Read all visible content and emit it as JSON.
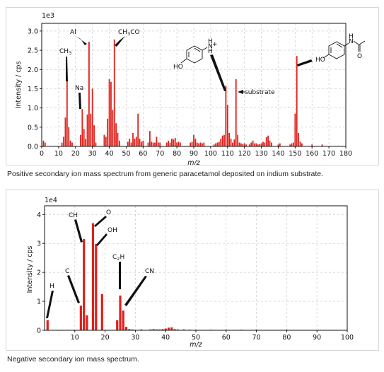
{
  "captions": {
    "positive": "Positive secondary ion mass spectrum from generic paracetamol deposited on indium substrate.",
    "negative": "Negative secondary ion mass spectrum."
  },
  "chart_data": [
    {
      "type": "bar",
      "title": "",
      "xlabel": "m/z",
      "ylabel": "Intensity / cps",
      "y_multiplier": "1e3",
      "xlim": [
        0,
        180
      ],
      "ylim": [
        0,
        3.2
      ],
      "x_ticks": [
        0,
        10,
        20,
        30,
        40,
        50,
        60,
        70,
        80,
        90,
        100,
        110,
        120,
        130,
        140,
        150,
        160,
        170,
        180
      ],
      "y_ticks": [
        "0.0",
        "0.5",
        "1.0",
        "1.5",
        "2.0",
        "2.5",
        "3.0"
      ],
      "grid": true,
      "color": "#e0201b",
      "x": [
        1,
        2,
        12,
        13,
        14,
        15,
        16,
        17,
        18,
        23,
        24,
        25,
        26,
        27,
        28,
        29,
        30,
        31,
        32,
        37,
        38,
        39,
        40,
        41,
        42,
        43,
        44,
        45,
        46,
        51,
        52,
        53,
        54,
        55,
        56,
        57,
        58,
        59,
        60,
        63,
        64,
        65,
        66,
        67,
        68,
        69,
        70,
        74,
        75,
        76,
        77,
        78,
        79,
        80,
        81,
        82,
        88,
        89,
        90,
        91,
        92,
        93,
        94,
        95,
        96,
        102,
        103,
        104,
        105,
        106,
        107,
        108,
        109,
        110,
        111,
        112,
        113,
        114,
        115,
        116,
        117,
        118,
        119,
        120,
        121,
        123,
        124,
        125,
        126,
        127,
        128,
        129,
        130,
        131,
        132,
        133,
        134,
        135,
        136,
        140,
        141,
        147,
        148,
        149,
        150,
        151,
        152,
        153,
        154,
        160,
        166
      ],
      "values": [
        0.15,
        0.1,
        0.1,
        0.25,
        0.75,
        1.74,
        0.5,
        0.15,
        0.1,
        0.3,
        0.97,
        0.45,
        0.2,
        0.83,
        2.72,
        0.85,
        1.5,
        0.55,
        0.1,
        0.3,
        0.25,
        0.72,
        1.75,
        1.68,
        0.95,
        2.78,
        0.6,
        0.35,
        0.15,
        0.12,
        0.2,
        0.1,
        0.35,
        0.2,
        0.25,
        0.85,
        0.2,
        0.12,
        0.15,
        0.1,
        0.4,
        0.12,
        0.1,
        0.1,
        0.25,
        0.1,
        0.1,
        0.1,
        0.15,
        0.1,
        0.2,
        0.18,
        0.22,
        0.1,
        0.12,
        0.1,
        0.1,
        0.12,
        0.3,
        0.2,
        0.1,
        0.08,
        0.1,
        0.08,
        0.1,
        0.05,
        0.08,
        0.1,
        0.12,
        0.2,
        0.28,
        0.3,
        1.58,
        1.08,
        0.35,
        0.2,
        0.1,
        0.18,
        1.75,
        0.3,
        0.1,
        0.08,
        0.06,
        0.08,
        0.05,
        0.05,
        0.1,
        0.15,
        0.08,
        0.08,
        0.05,
        0.06,
        0.08,
        0.12,
        0.1,
        0.24,
        0.28,
        0.15,
        0.1,
        0.05,
        0.08,
        0.05,
        0.08,
        0.1,
        0.85,
        2.35,
        0.35,
        0.12,
        0.08,
        0.05,
        0.05
      ],
      "annotations": [
        {
          "text": "Al",
          "x": 27
        },
        {
          "text": "CH3CO",
          "x": 43
        },
        {
          "text": "CH3",
          "x": 15
        },
        {
          "text": "Na",
          "x": 23
        },
        {
          "text": "substrate",
          "x": 115
        },
        {
          "text": "paracetamol ion",
          "x": 109
        },
        {
          "text": "paracetamol molecule",
          "x": 151
        }
      ]
    },
    {
      "type": "bar",
      "title": "",
      "xlabel": "m/z",
      "ylabel": "Intensity / cps",
      "y_multiplier": "1e4",
      "xlim": [
        0,
        100
      ],
      "ylim": [
        0,
        4.3
      ],
      "x_ticks": [
        10,
        20,
        30,
        40,
        50,
        60,
        70,
        80,
        90,
        100
      ],
      "y_ticks": [
        "0",
        "1",
        "2",
        "3",
        "4"
      ],
      "grid": true,
      "color": "#e0201b",
      "x": [
        1,
        12,
        13,
        14,
        16,
        17,
        19,
        24,
        25,
        26,
        27,
        28,
        29,
        32,
        35,
        36,
        37,
        38,
        39,
        40,
        41,
        42,
        43,
        44,
        46,
        48,
        50,
        55,
        60,
        65,
        70,
        80
      ],
      "values": [
        0.35,
        0.85,
        3.15,
        0.52,
        3.7,
        2.98,
        1.25,
        0.35,
        1.2,
        0.68,
        0.12,
        0.04,
        0.03,
        0.03,
        0.03,
        0.04,
        0.03,
        0.03,
        0.04,
        0.06,
        0.09,
        0.1,
        0.04,
        0.03,
        0.03,
        0.02,
        0.02,
        0.02,
        0.02,
        0.02,
        0.02,
        0.02
      ],
      "annotations": [
        {
          "text": "H",
          "x": 1
        },
        {
          "text": "C",
          "x": 12
        },
        {
          "text": "CH",
          "x": 13
        },
        {
          "text": "O",
          "x": 16
        },
        {
          "text": "OH",
          "x": 17
        },
        {
          "text": "C2H",
          "x": 25
        },
        {
          "text": "CN",
          "x": 26
        }
      ]
    }
  ]
}
